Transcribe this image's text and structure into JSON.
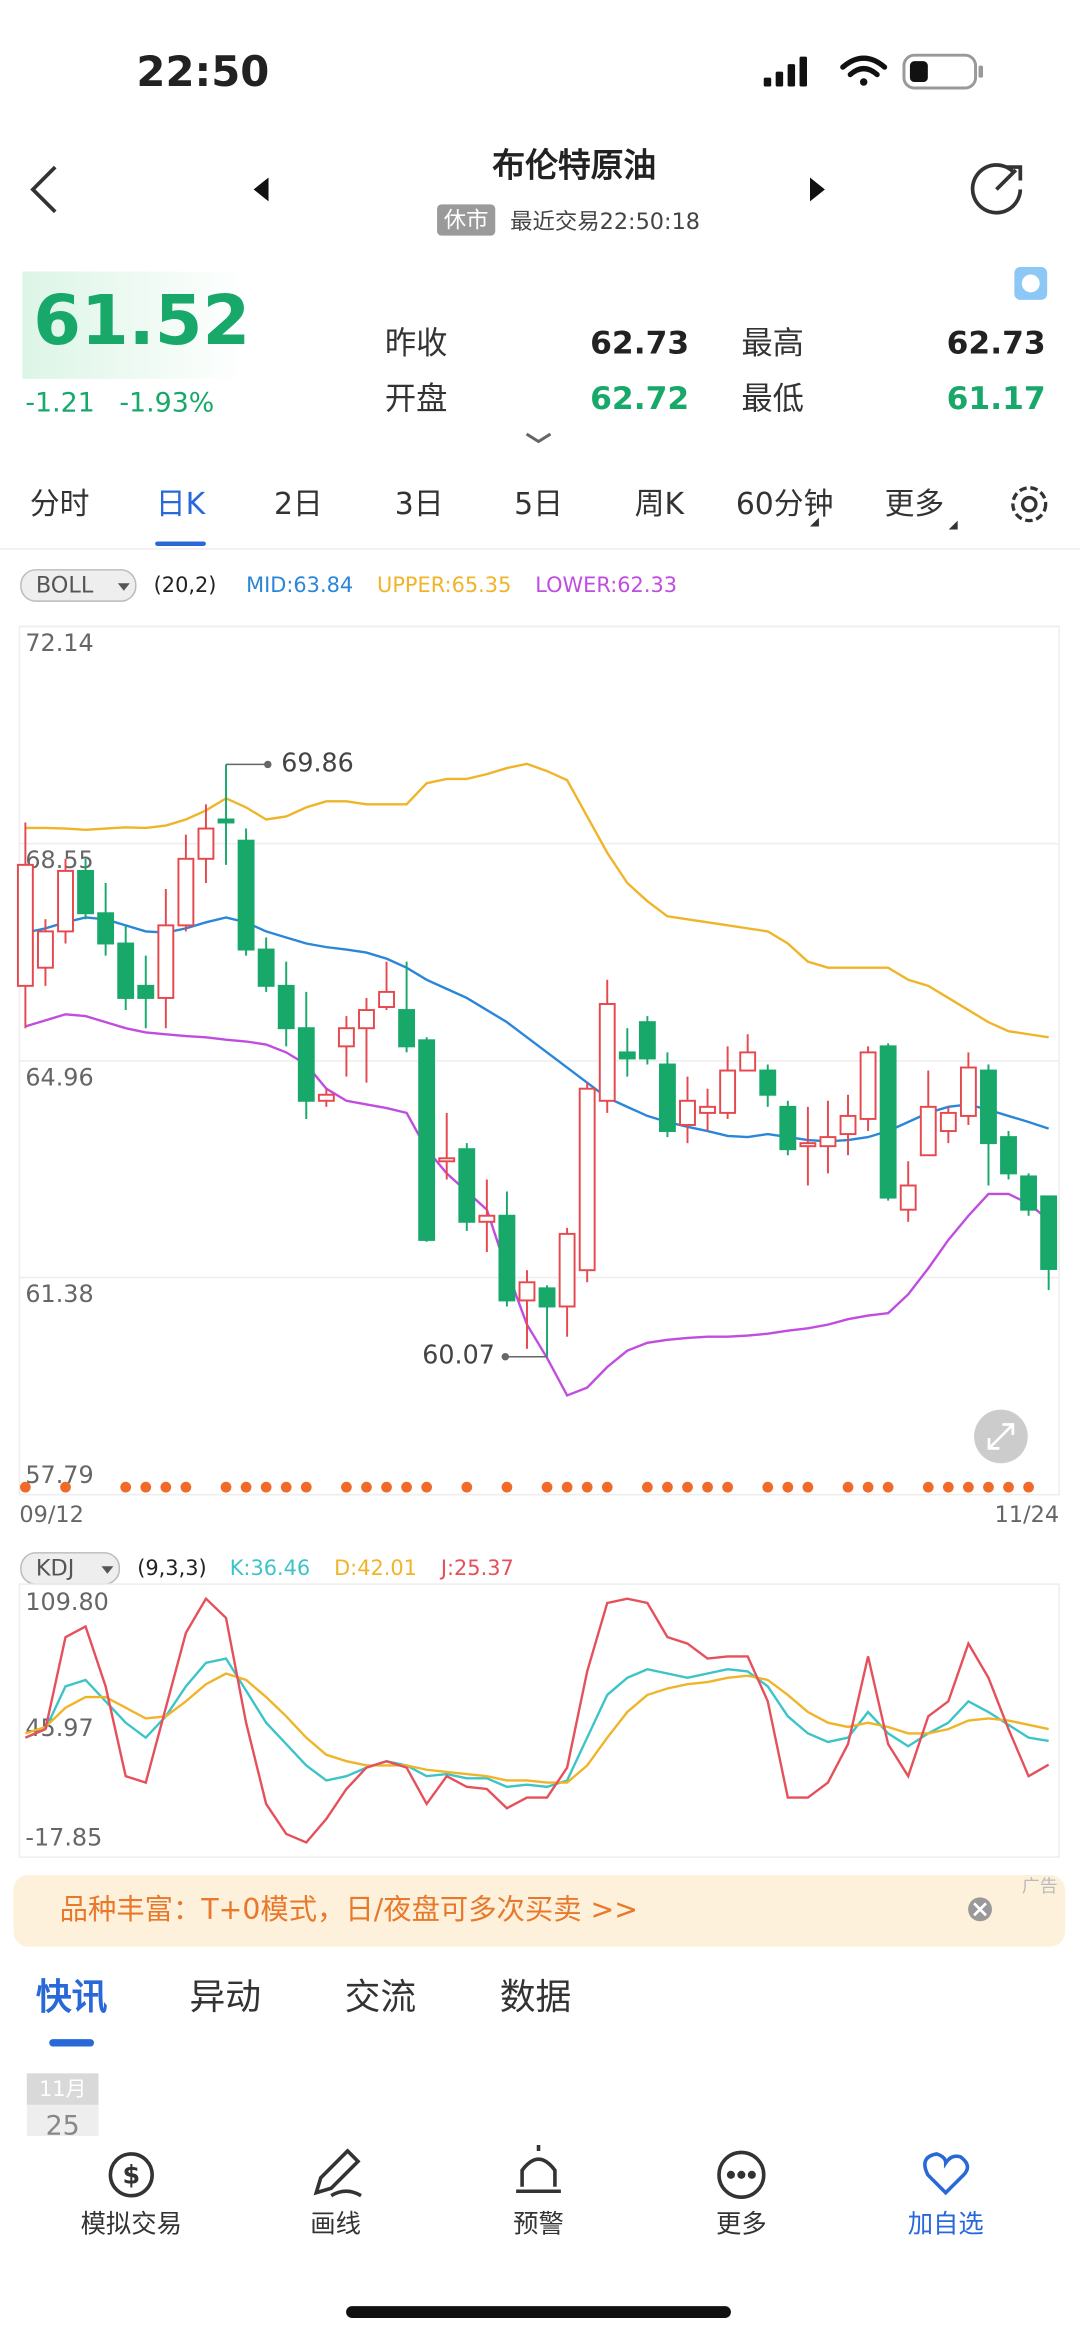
{
  "status_bar": {
    "time": "22:50"
  },
  "header": {
    "title": "布伦特原油",
    "badge": "休市",
    "last_trade": "最近交易22:50:18"
  },
  "quote": {
    "price": "61.52",
    "change": "-1.21",
    "change_pct": "-1.93%",
    "color": "#17a86a",
    "fields": [
      {
        "label": "昨收",
        "value": "62.73",
        "color": "#222222"
      },
      {
        "label": "最高",
        "value": "62.73",
        "color": "#222222"
      },
      {
        "label": "开盘",
        "value": "62.72",
        "color": "#17a86a"
      },
      {
        "label": "最低",
        "value": "61.17",
        "color": "#17a86a"
      }
    ]
  },
  "tabs": {
    "items": [
      "分时",
      "日K",
      "2日",
      "3日",
      "5日",
      "周K",
      "60分钟",
      "更多"
    ],
    "active": 1
  },
  "chart_data": [
    {
      "type": "candlestick",
      "indicator": "BOLL",
      "params": "(20,2)",
      "legend": [
        "MID:63.84",
        "UPPER:65.35",
        "LOWER:62.33"
      ],
      "categories": [
        "09/12",
        null,
        null,
        null,
        null,
        null,
        null,
        null,
        null,
        null,
        null,
        null,
        null,
        null,
        null,
        null,
        null,
        null,
        null,
        null,
        null,
        null,
        null,
        null,
        null,
        null,
        null,
        null,
        null,
        null,
        null,
        null,
        null,
        null,
        null,
        null,
        null,
        null,
        null,
        null,
        null,
        null,
        null,
        null,
        null,
        null,
        null,
        null,
        null,
        null,
        null,
        "11/24"
      ],
      "open": [
        66.2,
        66.5,
        67.1,
        68.1,
        67.4,
        66.9,
        66.2,
        66.0,
        67.2,
        68.3,
        68.95,
        68.6,
        66.8,
        66.2,
        65.5,
        64.3,
        65.2,
        65.5,
        65.85,
        65.8,
        65.3,
        63.3,
        63.5,
        62.3,
        62.4,
        61.0,
        61.2,
        60.9,
        61.5,
        64.3,
        65.1,
        65.6,
        64.9,
        63.9,
        64.1,
        64.1,
        64.8,
        64.8,
        64.2,
        63.55,
        63.55,
        63.75,
        64.0,
        65.2,
        62.5,
        63.4,
        63.8,
        64.05,
        64.8,
        63.7,
        63.05,
        62.72
      ],
      "high": [
        68.9,
        67.3,
        68.3,
        68.3,
        67.9,
        67.2,
        66.7,
        67.8,
        68.7,
        69.2,
        69.86,
        68.8,
        67.0,
        66.6,
        66.1,
        64.5,
        65.7,
        66.0,
        66.6,
        66.6,
        65.35,
        64.1,
        63.6,
        63.0,
        62.8,
        61.5,
        61.25,
        62.2,
        64.6,
        66.3,
        65.5,
        65.7,
        65.1,
        64.7,
        64.5,
        65.2,
        65.4,
        64.9,
        64.3,
        64.2,
        64.3,
        64.4,
        65.2,
        65.25,
        63.3,
        64.8,
        64.2,
        65.1,
        64.9,
        63.8,
        63.1,
        62.73
      ],
      "low": [
        65.5,
        66.2,
        66.9,
        67.3,
        66.7,
        65.8,
        65.5,
        65.5,
        67.1,
        67.9,
        68.2,
        66.7,
        66.1,
        65.2,
        64.0,
        64.2,
        64.7,
        64.6,
        65.8,
        65.1,
        61.97,
        63.0,
        62.15,
        61.8,
        60.9,
        60.2,
        60.07,
        60.4,
        61.3,
        64.1,
        64.7,
        64.9,
        63.7,
        63.6,
        63.8,
        64.0,
        64.8,
        64.2,
        63.4,
        62.9,
        63.1,
        63.4,
        63.8,
        62.65,
        62.3,
        63.4,
        63.6,
        63.9,
        62.9,
        63.0,
        62.4,
        61.17
      ],
      "close": [
        68.2,
        67.1,
        68.1,
        67.4,
        66.9,
        66.0,
        66.0,
        67.2,
        68.3,
        68.8,
        68.9,
        66.8,
        66.2,
        65.5,
        64.3,
        64.4,
        65.5,
        65.8,
        66.1,
        65.2,
        62.0,
        63.35,
        62.3,
        62.4,
        61.0,
        61.3,
        60.9,
        62.1,
        64.5,
        65.9,
        65.0,
        65.0,
        63.8,
        64.3,
        64.2,
        64.8,
        65.1,
        64.4,
        63.5,
        63.6,
        63.7,
        64.05,
        65.1,
        62.7,
        62.9,
        64.2,
        64.1,
        64.85,
        63.6,
        63.1,
        62.5,
        61.52
      ],
      "up_color": "#e5484d",
      "down_color": "#17a86a",
      "hollow_up": true,
      "lines": [
        {
          "color": "#2a86d8",
          "values": [
            67.08,
            67.15,
            67.25,
            67.33,
            67.3,
            67.2,
            67.1,
            67.08,
            67.15,
            67.25,
            67.33,
            67.25,
            67.1,
            67.0,
            66.9,
            66.84,
            66.8,
            66.75,
            66.65,
            66.5,
            66.3,
            66.15,
            66.0,
            65.8,
            65.6,
            65.35,
            65.1,
            64.85,
            64.6,
            64.35,
            64.2,
            64.05,
            63.95,
            63.87,
            63.8,
            63.72,
            63.7,
            63.75,
            63.7,
            63.65,
            63.63,
            63.65,
            63.7,
            63.8,
            63.95,
            64.1,
            64.2,
            64.24,
            64.15,
            64.05,
            63.95,
            63.84
          ]
        },
        {
          "color": "#f0b429",
          "values": [
            68.81,
            68.81,
            68.8,
            68.78,
            68.8,
            68.82,
            68.81,
            68.85,
            68.95,
            69.1,
            69.3,
            69.15,
            68.95,
            69.0,
            69.15,
            69.25,
            69.25,
            69.2,
            69.2,
            69.2,
            69.55,
            69.62,
            69.62,
            69.7,
            69.8,
            69.87,
            69.75,
            69.6,
            69.0,
            68.4,
            67.9,
            67.6,
            67.35,
            67.3,
            67.25,
            67.2,
            67.15,
            67.1,
            66.9,
            66.6,
            66.5,
            66.5,
            66.5,
            66.5,
            66.3,
            66.2,
            66.0,
            65.8,
            65.6,
            65.45,
            65.4,
            65.35
          ]
        },
        {
          "color": "#c04ce0",
          "values": [
            65.53,
            65.63,
            65.73,
            65.7,
            65.6,
            65.5,
            65.43,
            65.4,
            65.37,
            65.35,
            65.31,
            65.28,
            65.23,
            65.1,
            64.9,
            64.5,
            64.3,
            64.24,
            64.18,
            64.1,
            63.5,
            63.1,
            62.8,
            62.5,
            61.5,
            60.6,
            60.05,
            59.43,
            59.56,
            59.9,
            60.17,
            60.3,
            60.35,
            60.38,
            60.4,
            60.4,
            60.42,
            60.45,
            60.5,
            60.54,
            60.6,
            60.69,
            60.75,
            60.79,
            61.1,
            61.53,
            62.0,
            62.4,
            62.76,
            62.76,
            62.6,
            62.33
          ]
        }
      ],
      "annotations": [
        {
          "value": 69.86
        },
        {
          "value": 60.07
        }
      ],
      "signals": [
        0,
        2,
        5,
        6,
        7,
        8,
        10,
        11,
        12,
        13,
        14,
        16,
        17,
        18,
        19,
        20,
        22,
        24,
        26,
        27,
        28,
        29,
        31,
        32,
        33,
        34,
        35,
        37,
        38,
        39,
        41,
        42,
        43,
        45,
        46,
        47,
        48,
        49,
        50
      ],
      "signal_color": "#f06a2a",
      "ylim": [
        57.79,
        72.14
      ],
      "yticks": [
        72.14,
        68.55,
        64.96,
        61.38,
        57.79
      ],
      "grid": true
    },
    {
      "type": "line",
      "indicator": "KDJ",
      "params": "(9,3,3)",
      "legend": [
        "K:36.46",
        "D:42.01",
        "J:25.37"
      ],
      "series": [
        {
          "color": "#3cc4c8",
          "values": [
            38,
            42,
            62,
            65,
            55,
            45,
            38,
            48,
            62,
            73,
            75,
            60,
            45,
            35,
            25,
            18,
            20,
            24,
            27,
            25,
            20,
            21,
            19,
            19,
            15,
            16,
            15,
            18,
            38,
            58,
            66,
            70,
            68,
            66,
            68,
            70,
            69,
            62,
            48,
            40,
            36,
            38,
            50,
            40,
            34,
            40,
            45,
            55,
            50,
            44,
            38,
            36.46
          ]
        },
        {
          "color": "#f0b429",
          "values": [
            40,
            43,
            52,
            57,
            57,
            52,
            47,
            48,
            55,
            63,
            68,
            65,
            57,
            48,
            38,
            30,
            27,
            25,
            25,
            25,
            23,
            22,
            21,
            20,
            18,
            18,
            17,
            17,
            25,
            38,
            50,
            58,
            61,
            63,
            64,
            66,
            67,
            65,
            58,
            50,
            45,
            43,
            45,
            43,
            40,
            40,
            42,
            46,
            47,
            46,
            44,
            42.01
          ]
        },
        {
          "color": "#e5505a",
          "values": [
            38,
            42,
            85,
            90,
            62,
            20,
            17,
            52,
            87,
            103,
            94,
            45,
            7,
            -7,
            -11,
            0,
            14,
            24,
            27,
            24,
            7,
            20,
            15,
            14,
            5,
            10,
            10,
            24,
            69,
            101,
            103,
            101,
            85,
            82,
            75,
            76,
            76,
            55,
            10,
            10,
            17,
            35,
            76,
            35,
            20,
            48,
            55,
            82,
            66,
            42,
            20,
            25.37
          ]
        }
      ],
      "ylim": [
        -17.85,
        109.8
      ],
      "yticks": [
        {
          "value": 109.8,
          "label": "109.80"
        },
        45.97,
        -17.85
      ],
      "grid": false
    }
  ],
  "ad": {
    "text": "品种丰富：T+0模式，日/夜盘可多次买卖 >>",
    "tag": "广告"
  },
  "news_tabs": {
    "items": [
      "快讯",
      "异动",
      "交流",
      "数据"
    ],
    "active": 0
  },
  "news_date": {
    "month": "11月",
    "day": "25"
  },
  "bottom_nav": {
    "items": [
      "模拟交易",
      "画线",
      "预警",
      "更多",
      "加自选"
    ],
    "highlight": 4
  }
}
